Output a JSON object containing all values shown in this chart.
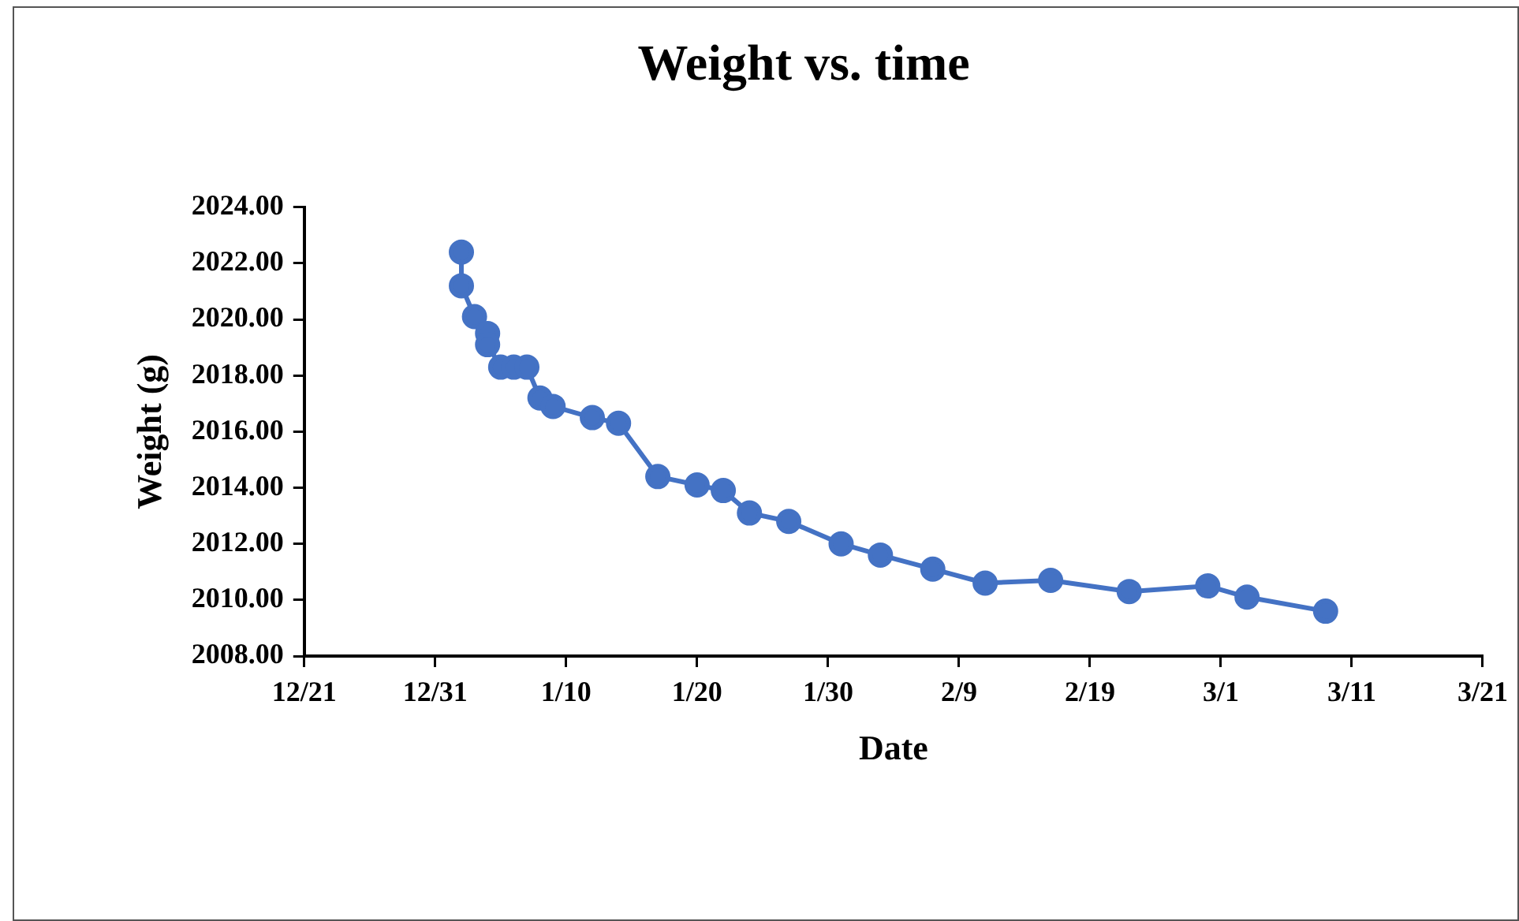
{
  "chart_data": {
    "type": "line",
    "title": "Weight vs. time",
    "xlabel": "Date",
    "ylabel": "Weight (g)",
    "x": [
      "2019-01-02",
      "2019-01-02",
      "2019-01-03",
      "2019-01-04",
      "2019-01-04",
      "2019-01-05",
      "2019-01-06",
      "2019-01-07",
      "2019-01-08",
      "2019-01-09",
      "2019-01-12",
      "2019-01-14",
      "2019-01-17",
      "2019-01-20",
      "2019-01-22",
      "2019-01-24",
      "2019-01-27",
      "2019-01-31",
      "2019-02-03",
      "2019-02-07",
      "2019-02-11",
      "2019-02-16",
      "2019-02-22",
      "2019-02-28",
      "2019-03-03",
      "2019-03-09"
    ],
    "series": [
      {
        "color": "#4472c4",
        "values": [
          2022.4,
          2021.2,
          2020.1,
          2019.5,
          2019.1,
          2018.3,
          2018.3,
          2018.3,
          2017.2,
          2016.9,
          2016.5,
          2016.3,
          2014.4,
          2014.1,
          2013.9,
          2013.1,
          2012.8,
          2012.0,
          2011.6,
          2011.1,
          2010.6,
          2010.7,
          2010.3,
          2010.5,
          2010.1,
          2009.6
        ]
      }
    ],
    "xlim": [
      "2018-12-21",
      "2019-03-21"
    ],
    "xticks": [
      {
        "value": "2018-12-21",
        "label": "12/21"
      },
      {
        "value": "2018-12-31",
        "label": "12/31"
      },
      {
        "value": "2019-01-10",
        "label": "1/10"
      },
      {
        "value": "2019-01-20",
        "label": "1/20"
      },
      {
        "value": "2019-01-30",
        "label": "1/30"
      },
      {
        "value": "2019-02-09",
        "label": "2/9"
      },
      {
        "value": "2019-02-19",
        "label": "2/19"
      },
      {
        "value": "2019-03-01",
        "label": "3/1"
      },
      {
        "value": "2019-03-11",
        "label": "3/11"
      },
      {
        "value": "2019-03-21",
        "label": "3/21"
      }
    ],
    "ylim": [
      2008,
      2024
    ],
    "yticks": [
      {
        "value": 2008,
        "label": "2008.00"
      },
      {
        "value": 2010,
        "label": "2010.00"
      },
      {
        "value": 2012,
        "label": "2012.00"
      },
      {
        "value": 2014,
        "label": "2014.00"
      },
      {
        "value": 2016,
        "label": "2016.00"
      },
      {
        "value": 2018,
        "label": "2018.00"
      },
      {
        "value": 2020,
        "label": "2020.00"
      },
      {
        "value": 2022,
        "label": "2022.00"
      },
      {
        "value": 2024,
        "label": "2024.00"
      }
    ],
    "marker": "circle",
    "line_style": "solid",
    "grid": false,
    "legend": false
  }
}
